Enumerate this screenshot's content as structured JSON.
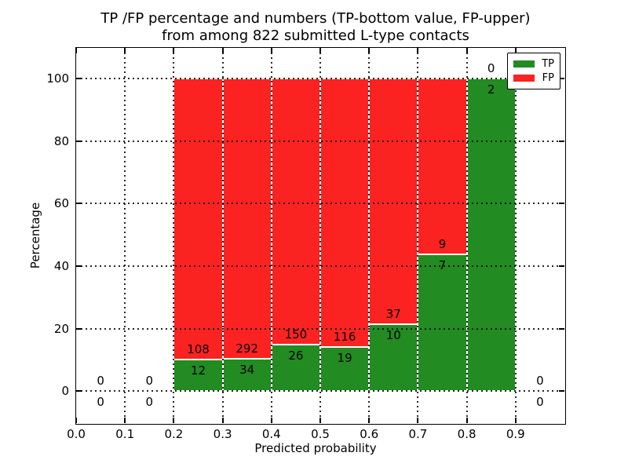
{
  "figure": {
    "title_line1": "TP /FP percentage and numbers (TP-bottom value, FP-upper)",
    "title_line2": "from among 822 submitted L-type contacts",
    "xlabel": "Predicted probability",
    "ylabel": "Percentage"
  },
  "legend": {
    "position": "upper right",
    "items": [
      {
        "label": "TP",
        "color": "#228b22"
      },
      {
        "label": "FP",
        "color": "#fb2222"
      }
    ]
  },
  "axes": {
    "xlim": [
      0.0,
      1.0
    ],
    "ylim": [
      -10.3,
      109.9
    ],
    "x_ticks": [
      {
        "v": 0.0,
        "label": "0.0"
      },
      {
        "v": 0.1,
        "label": "0.1"
      },
      {
        "v": 0.2,
        "label": "0.2"
      },
      {
        "v": 0.3,
        "label": "0.3"
      },
      {
        "v": 0.4,
        "label": "0.4"
      },
      {
        "v": 0.5,
        "label": "0.5"
      },
      {
        "v": 0.6,
        "label": "0.6"
      },
      {
        "v": 0.7,
        "label": "0.7"
      },
      {
        "v": 0.8,
        "label": "0.8"
      },
      {
        "v": 0.9,
        "label": "0.9"
      }
    ],
    "y_ticks": [
      {
        "v": 0,
        "label": "0"
      },
      {
        "v": 20,
        "label": "20"
      },
      {
        "v": 40,
        "label": "40"
      },
      {
        "v": 60,
        "label": "60"
      },
      {
        "v": 80,
        "label": "80"
      },
      {
        "v": 100,
        "label": "100"
      }
    ],
    "grid": "dotted"
  },
  "chart_data": {
    "type": "bar",
    "stacked": true,
    "orientation": "vertical",
    "title": "TP /FP percentage and numbers (TP-bottom value, FP-upper) from among 822 submitted L-type contacts",
    "xlabel": "Predicted probability",
    "ylabel": "Percentage",
    "xlim": [
      0.0,
      1.0
    ],
    "ylim": [
      -10.3,
      109.9
    ],
    "grid": "dotted",
    "legend_position": "upper right",
    "total_contacts": 822,
    "bin_width": 0.1,
    "bar_height_rule": "green TP segment height = 100*tp/(tp+fp) percent; red FP segment stacked above to 100 percent; bins with tp+fp=0 have no bar, labels 0/0 around the zero line",
    "series": [
      {
        "name": "TP",
        "color": "#228b22"
      },
      {
        "name": "FP",
        "color": "#fb2222"
      }
    ],
    "bins": [
      {
        "range": "0.0-0.1",
        "center": 0.05,
        "tp": 0,
        "fp": 0
      },
      {
        "range": "0.1-0.2",
        "center": 0.15,
        "tp": 0,
        "fp": 0
      },
      {
        "range": "0.2-0.3",
        "center": 0.25,
        "tp": 12,
        "fp": 108
      },
      {
        "range": "0.3-0.4",
        "center": 0.35,
        "tp": 34,
        "fp": 292
      },
      {
        "range": "0.4-0.5",
        "center": 0.45,
        "tp": 26,
        "fp": 150
      },
      {
        "range": "0.5-0.6",
        "center": 0.55,
        "tp": 19,
        "fp": 116
      },
      {
        "range": "0.6-0.7",
        "center": 0.65,
        "tp": 10,
        "fp": 37
      },
      {
        "range": "0.7-0.8",
        "center": 0.75,
        "tp": 7,
        "fp": 9
      },
      {
        "range": "0.8-0.9",
        "center": 0.85,
        "tp": 2,
        "fp": 0
      },
      {
        "range": "0.9-1.0",
        "center": 0.95,
        "tp": 0,
        "fp": 0
      }
    ]
  },
  "colors": {
    "tp_green": "#228b22",
    "fp_red": "#fb2222",
    "bar_edge": "#ffffff",
    "grid": "#000000",
    "background": "#ffffff",
    "text": "#000000"
  }
}
